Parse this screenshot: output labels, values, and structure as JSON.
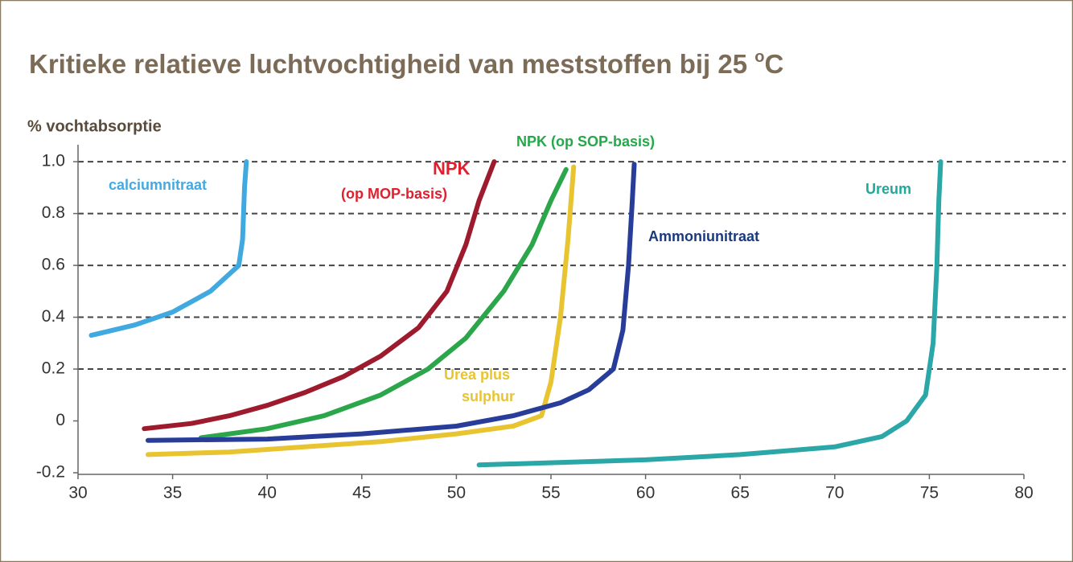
{
  "chart_data": {
    "type": "line",
    "title": "Kritieke relatieve luchtvochtigheid van meststoffen bij 25 ",
    "title_sup": "o",
    "title_end": "C",
    "y_label": "% vochtabsorptie",
    "xlim": [
      30,
      80
    ],
    "xticks": [
      30,
      35,
      40,
      45,
      50,
      55,
      60,
      65,
      70,
      75,
      80
    ],
    "ylim": [
      -0.2,
      1.05
    ],
    "yticks": [
      {
        "value": 1,
        "label": "1.0"
      },
      0.8,
      0.6,
      0.4,
      0.2,
      0,
      -0.2
    ],
    "grid": true,
    "series": [
      {
        "name": "calciumnitraat",
        "color": "#3fa9e0",
        "x": [
          30.7,
          33,
          35,
          37,
          38.5,
          38.7,
          38.8,
          38.9
        ],
        "values": [
          0.33,
          0.37,
          0.42,
          0.5,
          0.6,
          0.7,
          0.9,
          1.0
        ]
      },
      {
        "name": "NPK",
        "name_line2": "(op MOP-basis)",
        "color": "#9e1b2e",
        "x": [
          33.5,
          36,
          38,
          40,
          42,
          44,
          46,
          48,
          49.5,
          50.5,
          51.2,
          52
        ],
        "values": [
          -0.03,
          -0.01,
          0.02,
          0.06,
          0.11,
          0.17,
          0.25,
          0.36,
          0.5,
          0.68,
          0.85,
          1.0
        ]
      },
      {
        "name": "NPK (op SOP-basis)",
        "color": "#2ca64a",
        "x": [
          36.5,
          40,
          43,
          46,
          48.5,
          50.5,
          52.5,
          54,
          55,
          55.8
        ],
        "values": [
          -0.065,
          -0.03,
          0.02,
          0.1,
          0.2,
          0.32,
          0.5,
          0.68,
          0.85,
          0.97
        ]
      },
      {
        "name": "Urea plus",
        "name_line2": "sulphur",
        "color": "#e8c431",
        "x": [
          33.7,
          38,
          42,
          46,
          50,
          53,
          54.5,
          55,
          55.5,
          55.9,
          56.2
        ],
        "values": [
          -0.13,
          -0.12,
          -0.1,
          -0.08,
          -0.05,
          -0.02,
          0.02,
          0.15,
          0.4,
          0.7,
          0.98
        ]
      },
      {
        "name": "Ammoniunitraat",
        "color": "#283c9a",
        "x": [
          33.7,
          40,
          45,
          50,
          53,
          55.5,
          57,
          58.3,
          58.8,
          59.1,
          59.3,
          59.4
        ],
        "values": [
          -0.075,
          -0.07,
          -0.05,
          -0.02,
          0.02,
          0.07,
          0.12,
          0.2,
          0.35,
          0.6,
          0.85,
          0.99
        ]
      },
      {
        "name": "Ureum",
        "color": "#2aa7a6",
        "x": [
          51.2,
          60,
          65,
          70,
          72.5,
          73.8,
          74.8,
          75.2,
          75.4,
          75.5,
          75.6
        ],
        "values": [
          -0.17,
          -0.15,
          -0.13,
          -0.1,
          -0.06,
          0,
          0.1,
          0.3,
          0.6,
          0.85,
          1.0
        ]
      }
    ]
  }
}
